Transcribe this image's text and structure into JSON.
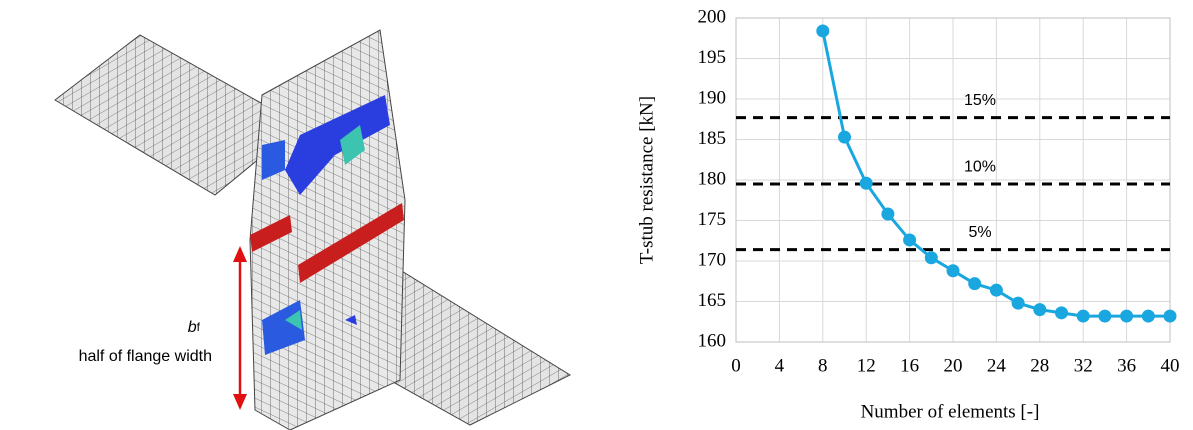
{
  "figure_labels": {
    "symbol": "b",
    "subscript": "f",
    "text": "half of flange width"
  },
  "chart_data": {
    "type": "line",
    "x_label": "Number of elements [-]",
    "y_label": "T-stub resistance [kN]",
    "x": [
      8,
      10,
      12,
      14,
      16,
      18,
      20,
      22,
      24,
      26,
      28,
      30,
      32,
      34,
      36,
      38,
      40
    ],
    "series": [
      {
        "color": "#1aa7e0",
        "values": [
          198.4,
          185.3,
          179.6,
          175.8,
          172.6,
          170.4,
          168.8,
          167.2,
          166.4,
          164.8,
          164.0,
          163.6,
          163.2,
          163.2,
          163.2,
          163.2,
          163.2
        ]
      }
    ],
    "reference_lines": [
      {
        "value": 187.7,
        "label": "15%"
      },
      {
        "value": 179.5,
        "label": "10%"
      },
      {
        "value": 171.4,
        "label": "5%"
      }
    ],
    "xlim": [
      0,
      40
    ],
    "xticks": [
      0,
      4,
      8,
      12,
      16,
      20,
      24,
      28,
      32,
      36,
      40
    ],
    "ylim": [
      160,
      200
    ],
    "yticks": [
      160,
      165,
      170,
      175,
      180,
      185,
      190,
      195,
      200
    ],
    "grid": true
  }
}
